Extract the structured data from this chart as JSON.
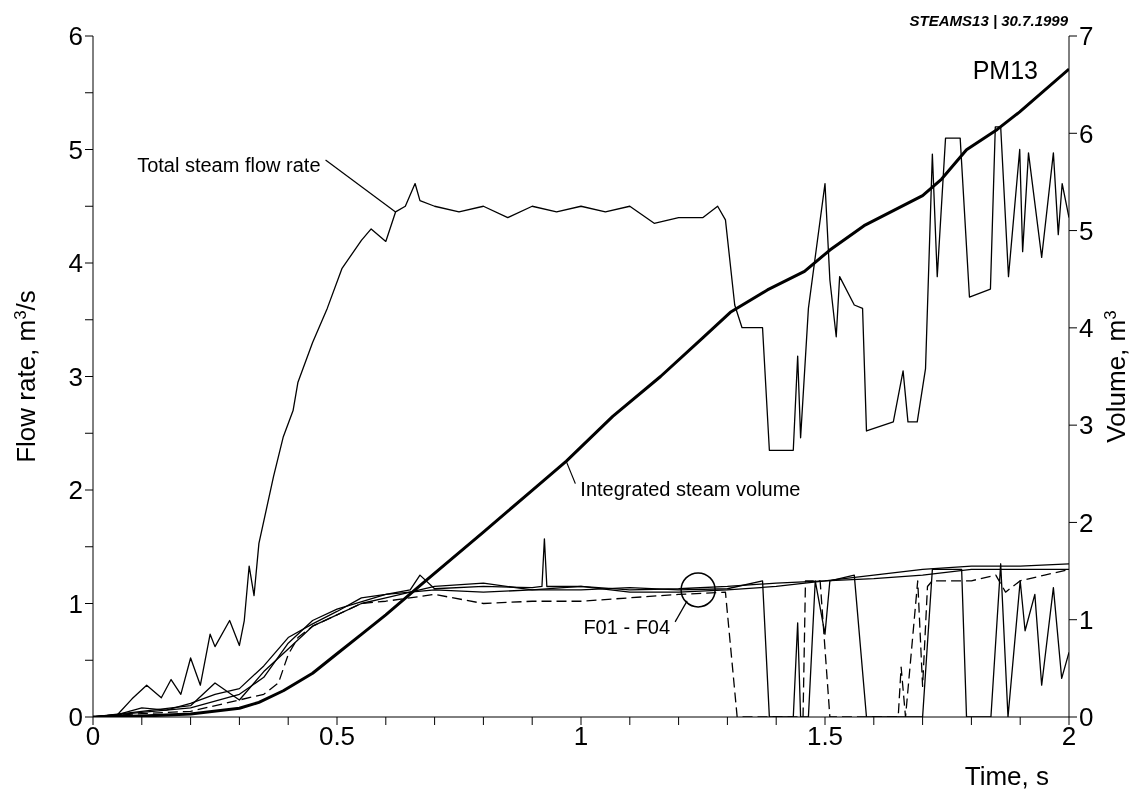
{
  "chart_data": {
    "type": "line",
    "xlabel": "Time, s",
    "ylabel": "Flow rate,  m$^{3}$/s",
    "y2label": "Volume,  m$^{3}$",
    "xlim": [
      0,
      2
    ],
    "xticks": [
      0,
      {
        "value": 0.1,
        "label": null
      },
      {
        "value": 0.2,
        "label": null
      },
      {
        "value": 0.3,
        "label": null
      },
      {
        "value": 0.4,
        "label": null
      },
      0.5,
      {
        "value": 0.6,
        "label": null
      },
      {
        "value": 0.7,
        "label": null
      },
      {
        "value": 0.8,
        "label": null
      },
      {
        "value": 0.9,
        "label": null
      },
      1,
      {
        "value": 1.1,
        "label": null
      },
      {
        "value": 1.2,
        "label": null
      },
      {
        "value": 1.3,
        "label": null
      },
      {
        "value": 1.4,
        "label": null
      },
      1.5,
      {
        "value": 1.6,
        "label": null
      },
      {
        "value": 1.7,
        "label": null
      },
      {
        "value": 1.8,
        "label": null
      },
      {
        "value": 1.9,
        "label": null
      },
      2
    ],
    "ylim": [
      0,
      6
    ],
    "yticks": [
      0,
      {
        "value": 0.5,
        "label": null
      },
      1,
      {
        "value": 1.5,
        "label": null
      },
      2,
      {
        "value": 2.5,
        "label": null
      },
      3,
      {
        "value": 3.5,
        "label": null
      },
      4,
      {
        "value": 4.5,
        "label": null
      },
      5,
      {
        "value": 5.5,
        "label": null
      },
      6
    ],
    "y2lim": [
      0,
      7
    ],
    "y2ticks": [
      0,
      1,
      2,
      3,
      4,
      5,
      6,
      7
    ],
    "marker": "none",
    "annotations": [
      "STEAMS13 | 30.7.1999",
      "PM13",
      {
        "text": "Total steam flow rate",
        "x": 0.62,
        "y": 4.45
      },
      {
        "text": "Integrated steam volume",
        "x": 0.97,
        "y": 2.25
      },
      {
        "text": "F01 - F04",
        "x": 1.24,
        "y": 1.12
      }
    ],
    "series": [
      {
        "color": "#000000",
        "line_style": "solid",
        "x": [
          0,
          0.05,
          0.08,
          0.11,
          0.14,
          0.16,
          0.18,
          0.2,
          0.22,
          0.24,
          0.25,
          0.28,
          0.3,
          0.31,
          0.32,
          0.33,
          0.34,
          0.37,
          0.39,
          0.41,
          0.42,
          0.45,
          0.48,
          0.51,
          0.55,
          0.57,
          0.6,
          0.62,
          0.64,
          0.66,
          0.67,
          0.7,
          0.75,
          0.8,
          0.85,
          0.9,
          0.95,
          1.0,
          1.05,
          1.1,
          1.15,
          1.2,
          1.25,
          1.28,
          1.296,
          1.315,
          1.33,
          1.372,
          1.386,
          1.435,
          1.444,
          1.45,
          1.466,
          1.5,
          1.51,
          1.523,
          1.53,
          1.56,
          1.577,
          1.585,
          1.64,
          1.66,
          1.67,
          1.689,
          1.706,
          1.72,
          1.73,
          1.747,
          1.777,
          1.796,
          1.839,
          1.849,
          1.86,
          1.876,
          1.899,
          1.905,
          1.917,
          1.944,
          1.968,
          1.978,
          1.986,
          2.0
        ],
        "values": [
          0,
          0.02,
          0.16,
          0.28,
          0.17,
          0.33,
          0.2,
          0.52,
          0.28,
          0.73,
          0.62,
          0.85,
          0.63,
          0.85,
          1.33,
          1.07,
          1.53,
          2.12,
          2.47,
          2.7,
          2.95,
          3.3,
          3.6,
          3.95,
          4.2,
          4.3,
          4.19,
          4.45,
          4.5,
          4.7,
          4.55,
          4.5,
          4.45,
          4.5,
          4.4,
          4.5,
          4.45,
          4.5,
          4.45,
          4.5,
          4.35,
          4.4,
          4.4,
          4.5,
          4.38,
          3.63,
          3.43,
          3.43,
          2.35,
          2.35,
          3.18,
          2.46,
          3.6,
          4.7,
          3.85,
          3.35,
          3.88,
          3.63,
          3.6,
          2.52,
          2.6,
          3.05,
          2.6,
          2.6,
          3.07,
          4.96,
          3.88,
          5.1,
          5.1,
          3.7,
          3.77,
          5.2,
          5.2,
          3.88,
          5.0,
          4.1,
          4.97,
          4.05,
          4.97,
          4.25,
          4.7,
          4.4
        ]
      },
      {
        "color": "#000000",
        "line_style": "solid",
        "axis": "y2",
        "x": [
          0,
          0.1,
          0.2,
          0.3,
          0.34,
          0.39,
          0.45,
          0.5,
          0.55,
          0.6,
          0.67,
          0.8,
          0.9,
          0.97,
          1.065,
          1.163,
          1.25,
          1.306,
          1.382,
          1.458,
          1.51,
          1.58,
          1.7,
          1.739,
          1.79,
          1.853,
          1.899,
          2.0
        ],
        "values": [
          0,
          0.01,
          0.03,
          0.09,
          0.15,
          0.27,
          0.45,
          0.65,
          0.85,
          1.05,
          1.35,
          1.9,
          2.33,
          2.63,
          3.09,
          3.5,
          3.9,
          4.16,
          4.39,
          4.58,
          4.8,
          5.05,
          5.36,
          5.53,
          5.83,
          6.04,
          6.22,
          6.66
        ]
      },
      {
        "color": "#000000",
        "line_style": "solid",
        "x": [
          0,
          0.05,
          0.1,
          0.15,
          0.2,
          0.25,
          0.3,
          0.35,
          0.4,
          0.45,
          0.5,
          0.55,
          0.6,
          0.65,
          0.67,
          0.7,
          0.8,
          0.9,
          0.92,
          0.925,
          0.93,
          1.0,
          1.1,
          1.2,
          1.3,
          1.4,
          1.5,
          1.6,
          1.7,
          1.8,
          1.9,
          2.0
        ],
        "values": [
          0,
          0.02,
          0.08,
          0.06,
          0.12,
          0.2,
          0.25,
          0.45,
          0.7,
          0.82,
          0.93,
          1.05,
          1.08,
          1.12,
          1.25,
          1.13,
          1.15,
          1.14,
          1.15,
          1.57,
          1.15,
          1.15,
          1.12,
          1.13,
          1.15,
          1.18,
          1.2,
          1.25,
          1.3,
          1.33,
          1.33,
          1.35
        ]
      },
      {
        "color": "#000000",
        "line_style": "solid",
        "x": [
          0,
          0.1,
          0.2,
          0.25,
          0.3,
          0.35,
          0.4,
          0.45,
          0.5,
          0.55,
          0.6,
          0.7,
          0.8,
          0.9,
          1.0,
          1.1,
          1.2,
          1.3,
          1.4,
          1.5,
          1.6,
          1.7,
          1.8,
          1.9,
          2.0
        ],
        "values": [
          0,
          0.05,
          0.1,
          0.3,
          0.15,
          0.4,
          0.6,
          0.8,
          0.9,
          1.0,
          1.05,
          1.15,
          1.18,
          1.12,
          1.15,
          1.1,
          1.1,
          1.12,
          1.15,
          1.2,
          1.22,
          1.25,
          1.3,
          1.3,
          1.3
        ]
      },
      {
        "color": "#000000",
        "line_style": "dashed",
        "x": [
          0,
          0.1,
          0.2,
          0.3,
          0.35,
          0.38,
          0.4,
          0.42,
          0.45,
          0.5,
          0.55,
          0.6,
          0.7,
          0.8,
          0.9,
          1.0,
          1.1,
          1.2,
          1.296,
          1.32,
          1.455,
          1.46,
          1.49,
          1.51,
          1.6,
          1.65,
          1.656,
          1.665,
          1.69,
          1.7,
          1.71,
          1.72,
          1.8,
          1.85,
          1.87,
          1.9,
          1.95,
          2.0
        ],
        "values": [
          0,
          0.03,
          0.05,
          0.15,
          0.2,
          0.3,
          0.55,
          0.7,
          0.8,
          0.9,
          1.0,
          1.02,
          1.08,
          1.0,
          1.02,
          1.02,
          1.05,
          1.08,
          1.1,
          0,
          0,
          1.2,
          1.2,
          0,
          0,
          0,
          0.44,
          0,
          1.2,
          0.27,
          1.15,
          1.2,
          1.2,
          1.25,
          1.1,
          1.2,
          1.25,
          1.3
        ]
      },
      {
        "color": "#000000",
        "line_style": "solid",
        "x": [
          0,
          0.1,
          0.2,
          0.3,
          0.35,
          0.4,
          0.45,
          0.5,
          0.6,
          0.7,
          0.8,
          0.9,
          1.0,
          1.1,
          1.2,
          1.3,
          1.372,
          1.386,
          1.435,
          1.444,
          1.45,
          1.466,
          1.48,
          1.5,
          1.51,
          1.56,
          1.585,
          1.7,
          1.72,
          1.78,
          1.79,
          1.84,
          1.86,
          1.875,
          1.9,
          1.91,
          1.93,
          1.944,
          1.968,
          1.985,
          2.0
        ],
        "values": [
          0,
          0.04,
          0.08,
          0.2,
          0.35,
          0.65,
          0.85,
          0.95,
          1.08,
          1.12,
          1.1,
          1.12,
          1.12,
          1.14,
          1.12,
          1.13,
          1.2,
          0,
          0,
          0.83,
          0,
          0,
          1.2,
          0.73,
          1.2,
          1.25,
          0,
          0,
          1.3,
          1.3,
          0,
          0,
          1.35,
          0,
          1.2,
          0.76,
          1.08,
          0.28,
          1.14,
          0.34,
          0.57
        ]
      }
    ]
  }
}
